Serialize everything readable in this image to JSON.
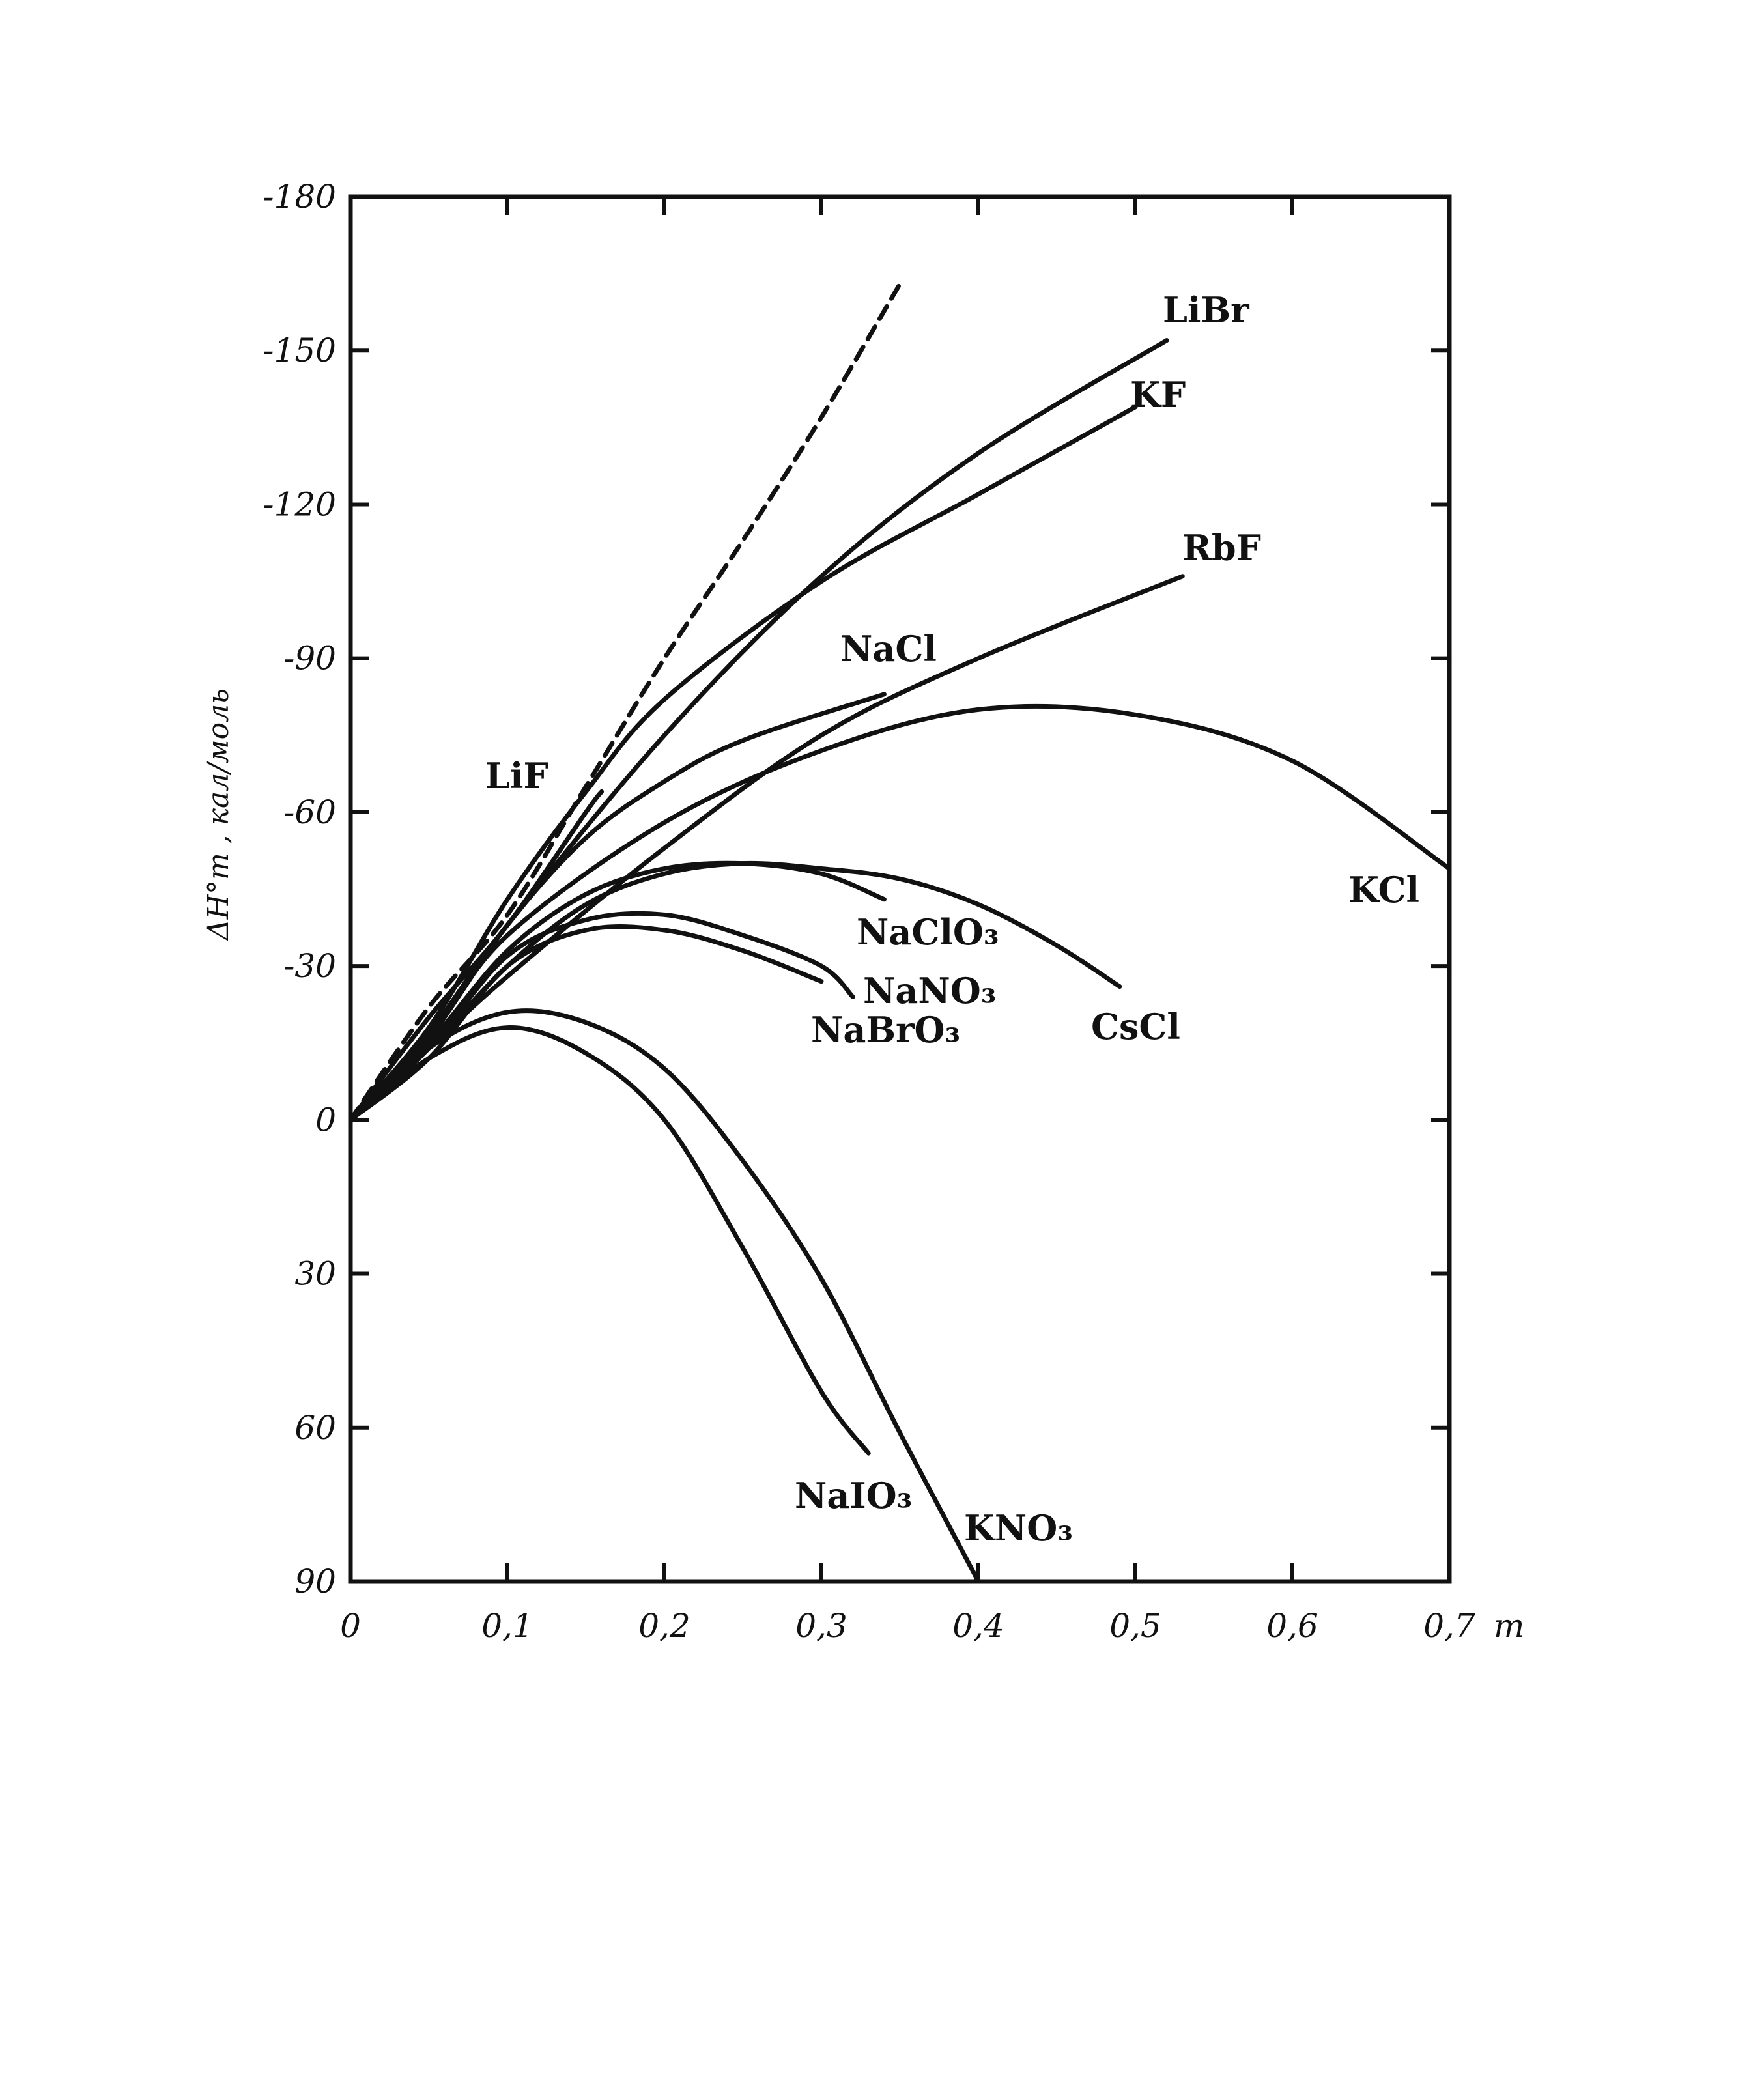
{
  "chart_data": {
    "type": "line",
    "title": "",
    "xlabel": "m",
    "ylabel": "ΔH°m , кал/моль",
    "xlim": [
      0,
      0.7
    ],
    "ylim": [
      90,
      -180
    ],
    "y_axis_inverted": true,
    "grid": false,
    "x_ticks": [
      "0",
      "0,1",
      "0,2",
      "0,3",
      "0,4",
      "0,5",
      "0,6",
      "0,7"
    ],
    "y_ticks": [
      "-180",
      "-150",
      "-120",
      "-90",
      "-60",
      "-30",
      "0",
      "30",
      "60",
      "90"
    ],
    "series": [
      {
        "name": "",
        "style": "dashed",
        "x": [
          0,
          0.05,
          0.1,
          0.15,
          0.2,
          0.25,
          0.3,
          0.35
        ],
        "y": [
          0,
          -22,
          -40,
          -65,
          -90,
          -113,
          -137,
          -163
        ]
      },
      {
        "name": "LiF",
        "x": [
          0,
          0.05,
          0.1,
          0.15,
          0.16
        ],
        "y": [
          0,
          -20,
          -38,
          -60,
          -64
        ]
      },
      {
        "name": "LiBr",
        "x": [
          0,
          0.05,
          0.1,
          0.2,
          0.3,
          0.4,
          0.52
        ],
        "y": [
          0,
          -17,
          -38,
          -75,
          -106,
          -130,
          -152
        ]
      },
      {
        "name": "KF",
        "x": [
          0,
          0.05,
          0.1,
          0.15,
          0.2,
          0.3,
          0.4,
          0.5
        ],
        "y": [
          0,
          -18,
          -43,
          -64,
          -82,
          -105,
          -122,
          -139
        ]
      },
      {
        "name": "RbF",
        "x": [
          0,
          0.05,
          0.1,
          0.2,
          0.3,
          0.4,
          0.53
        ],
        "y": [
          0,
          -14,
          -28,
          -53,
          -75,
          -90,
          -106
        ]
      },
      {
        "name": "NaCl",
        "x": [
          0,
          0.05,
          0.1,
          0.15,
          0.2,
          0.25,
          0.34
        ],
        "y": [
          0,
          -16,
          -38,
          -55,
          -66,
          -74,
          -83
        ]
      },
      {
        "name": "KCl",
        "x": [
          0,
          0.05,
          0.1,
          0.2,
          0.3,
          0.4,
          0.5,
          0.6,
          0.7
        ],
        "y": [
          0,
          -16,
          -36,
          -58,
          -72,
          -80,
          -79,
          -70,
          -49
        ]
      },
      {
        "name": "NaClO₃",
        "x": [
          0,
          0.05,
          0.1,
          0.15,
          0.2,
          0.25,
          0.3,
          0.34
        ],
        "y": [
          0,
          -15,
          -33,
          -44,
          -49,
          -50,
          -48,
          -43
        ]
      },
      {
        "name": "CsCl",
        "x": [
          0,
          0.05,
          0.1,
          0.15,
          0.2,
          0.25,
          0.3,
          0.35,
          0.4,
          0.45,
          0.49
        ],
        "y": [
          0,
          -14,
          -30,
          -42,
          -48,
          -50,
          -49,
          -47,
          -42,
          -34,
          -26
        ]
      },
      {
        "name": "NaNO₃",
        "x": [
          0,
          0.05,
          0.1,
          0.15,
          0.2,
          0.25,
          0.3,
          0.32
        ],
        "y": [
          0,
          -14,
          -32,
          -39,
          -40,
          -36,
          -30,
          -24
        ]
      },
      {
        "name": "NaBrO₃",
        "x": [
          0,
          0.05,
          0.1,
          0.15,
          0.2,
          0.25,
          0.3
        ],
        "y": [
          0,
          -12,
          -30,
          -37,
          -37,
          -33,
          -27
        ]
      },
      {
        "name": "NaIO₃",
        "x": [
          0,
          0.05,
          0.1,
          0.15,
          0.2,
          0.25,
          0.3,
          0.33
        ],
        "y": [
          0,
          -12,
          -18,
          -13,
          0,
          25,
          53,
          65
        ]
      },
      {
        "name": "KNO₃",
        "x": [
          0,
          0.05,
          0.1,
          0.15,
          0.2,
          0.25,
          0.3,
          0.35,
          0.4
        ],
        "y": [
          0,
          -14,
          -21,
          -19,
          -10,
          8,
          31,
          61,
          90
        ]
      }
    ]
  }
}
